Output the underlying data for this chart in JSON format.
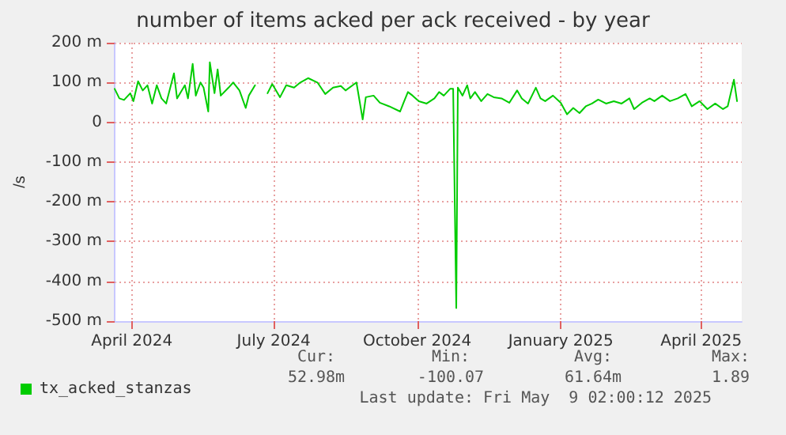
{
  "chart_data": {
    "type": "line",
    "title": "number of items acked per ack received - by year",
    "ylabel": "/s",
    "x": [
      "2024-03-21",
      "2024-03-24",
      "2024-03-27",
      "2024-03-31",
      "2024-04-02",
      "2024-04-05",
      "2024-04-08",
      "2024-04-11",
      "2024-04-14",
      "2024-04-17",
      "2024-04-20",
      "2024-04-23",
      "2024-04-28",
      "2024-04-30",
      "2024-05-05",
      "2024-05-07",
      "2024-05-10",
      "2024-05-12",
      "2024-05-15",
      "2024-05-17",
      "2024-05-20",
      "2024-05-21",
      "2024-05-24",
      "2024-05-26",
      "2024-05-28",
      "2024-06-02",
      "2024-06-05",
      "2024-06-09",
      "2024-06-13",
      "2024-06-15",
      "2024-06-19",
      "2024-06-23",
      "2024-06-27",
      "2024-06-30",
      "2024-07-05",
      "2024-07-09",
      "2024-07-14",
      "2024-07-18",
      "2024-07-23",
      "2024-07-29",
      "2024-08-03",
      "2024-08-08",
      "2024-08-13",
      "2024-08-16",
      "2024-08-23",
      "2024-08-27",
      "2024-08-29",
      "2024-09-03",
      "2024-09-07",
      "2024-09-13",
      "2024-09-20",
      "2024-09-22",
      "2024-09-25",
      "2024-09-28",
      "2024-10-02",
      "2024-10-07",
      "2024-10-12",
      "2024-10-15",
      "2024-10-18",
      "2024-10-22",
      "2024-10-24",
      "2024-10-26",
      "2024-10-27",
      "2024-10-30",
      "2024-11-02",
      "2024-11-04",
      "2024-11-07",
      "2024-11-11",
      "2024-11-15",
      "2024-11-19",
      "2024-11-24",
      "2024-11-29",
      "2024-12-04",
      "2024-12-07",
      "2024-12-11",
      "2024-12-16",
      "2024-12-19",
      "2024-12-22",
      "2024-12-27",
      "2025-01-01",
      "2025-01-05",
      "2025-01-09",
      "2025-01-13",
      "2025-01-17",
      "2025-01-21",
      "2025-01-25",
      "2025-01-30",
      "2025-02-04",
      "2025-02-09",
      "2025-02-14",
      "2025-02-17",
      "2025-02-22",
      "2025-02-27",
      "2025-03-02",
      "2025-03-07",
      "2025-03-12",
      "2025-03-17",
      "2025-03-22",
      "2025-03-26",
      "2025-03-31",
      "2025-04-05",
      "2025-04-10",
      "2025-04-15",
      "2025-04-18",
      "2025-04-22",
      "2025-04-24"
    ],
    "series": [
      {
        "name": "tx_acked_stanzas",
        "color": "#00cc00",
        "values": [
          84,
          60,
          56,
          73,
          53,
          103,
          80,
          93,
          47,
          93,
          60,
          47,
          123,
          60,
          93,
          60,
          147,
          67,
          100,
          87,
          27,
          151,
          73,
          133,
          67,
          87,
          100,
          80,
          36,
          67,
          93,
          null,
          73,
          96,
          63,
          93,
          87,
          100,
          111,
          100,
          71,
          87,
          91,
          80,
          100,
          7,
          63,
          67,
          49,
          40,
          27,
          47,
          76,
          67,
          53,
          47,
          60,
          76,
          67,
          84,
          84,
          -467,
          87,
          67,
          93,
          60,
          76,
          53,
          71,
          63,
          60,
          49,
          80,
          60,
          47,
          87,
          60,
          53,
          67,
          49,
          20,
          36,
          23,
          40,
          47,
          57,
          47,
          53,
          47,
          60,
          33,
          49,
          60,
          53,
          67,
          53,
          60,
          71,
          40,
          53,
          33,
          47,
          33,
          40,
          107,
          53
        ]
      }
    ],
    "xlim": [
      "2024-03-21",
      "2025-04-27"
    ],
    "xticks": [
      {
        "value": "2024-04-01",
        "label": "April 2024"
      },
      {
        "value": "2024-07-01",
        "label": "July 2024"
      },
      {
        "value": "2024-10-01",
        "label": "October 2024"
      },
      {
        "value": "2025-01-01",
        "label": "January 2025"
      },
      {
        "value": "2025-04-01",
        "label": "April 2025"
      }
    ],
    "ylim": [
      -500,
      200
    ],
    "yticks": [
      {
        "value": -500,
        "label": "-500 m"
      },
      {
        "value": -400,
        "label": "-400 m"
      },
      {
        "value": -300,
        "label": "-300 m"
      },
      {
        "value": -200,
        "label": "-200 m"
      },
      {
        "value": -100,
        "label": "-100 m"
      },
      0,
      {
        "value": 100,
        "label": "100 m"
      },
      {
        "value": 200,
        "label": "200 m"
      }
    ],
    "grid": true,
    "legend": "bottom left",
    "marker": "none",
    "line_style": "solid",
    "annotations": [
      "Cur:",
      "Min:",
      "Avg:",
      "Max:",
      "52.98m",
      "-100.07",
      "61.64m",
      "1.89",
      "Last update: Fri May  9 02:00:12 2025"
    ]
  }
}
